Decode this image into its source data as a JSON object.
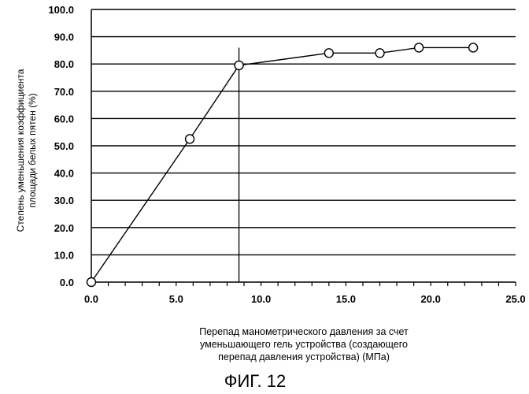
{
  "chart_data": {
    "type": "line",
    "title": "",
    "xlabel": [
      "Перепад манометрического давления за счет",
      "уменьшающего гель устройства (создающего",
      "перепад давления устройства) (МПа)"
    ],
    "ylabel": [
      "Степень уменьшения коэффициента",
      "площади белых пятен (%)"
    ],
    "xlim": [
      0,
      25
    ],
    "ylim": [
      0,
      100
    ],
    "x_ticks": [
      0,
      5,
      10,
      15,
      20,
      25
    ],
    "x_tick_labels": [
      "0.0",
      "5.0",
      "10.0",
      "15.0",
      "20.0",
      "25.0"
    ],
    "y_ticks": [
      0,
      10,
      20,
      30,
      40,
      50,
      60,
      70,
      80,
      90,
      100
    ],
    "y_tick_labels": [
      "0.0",
      "10.0",
      "20.0",
      "30.0",
      "40.0",
      "50.0",
      "60.0",
      "70.0",
      "80.0",
      "90.0",
      "100.0"
    ],
    "grid": {
      "horizontal": true,
      "vertical": false
    },
    "series": [
      {
        "x": [
          0,
          5.8,
          8.7,
          14.0,
          17.0,
          19.3,
          22.5
        ],
        "y": [
          0,
          52.5,
          79.5,
          84.0,
          84.0,
          86.0,
          86.0
        ]
      }
    ],
    "reference_line_x": 8.7,
    "colors": {
      "line": "#000000",
      "grid": "#000000",
      "background": "#ffffff"
    }
  },
  "caption": "ФИГ. 12"
}
